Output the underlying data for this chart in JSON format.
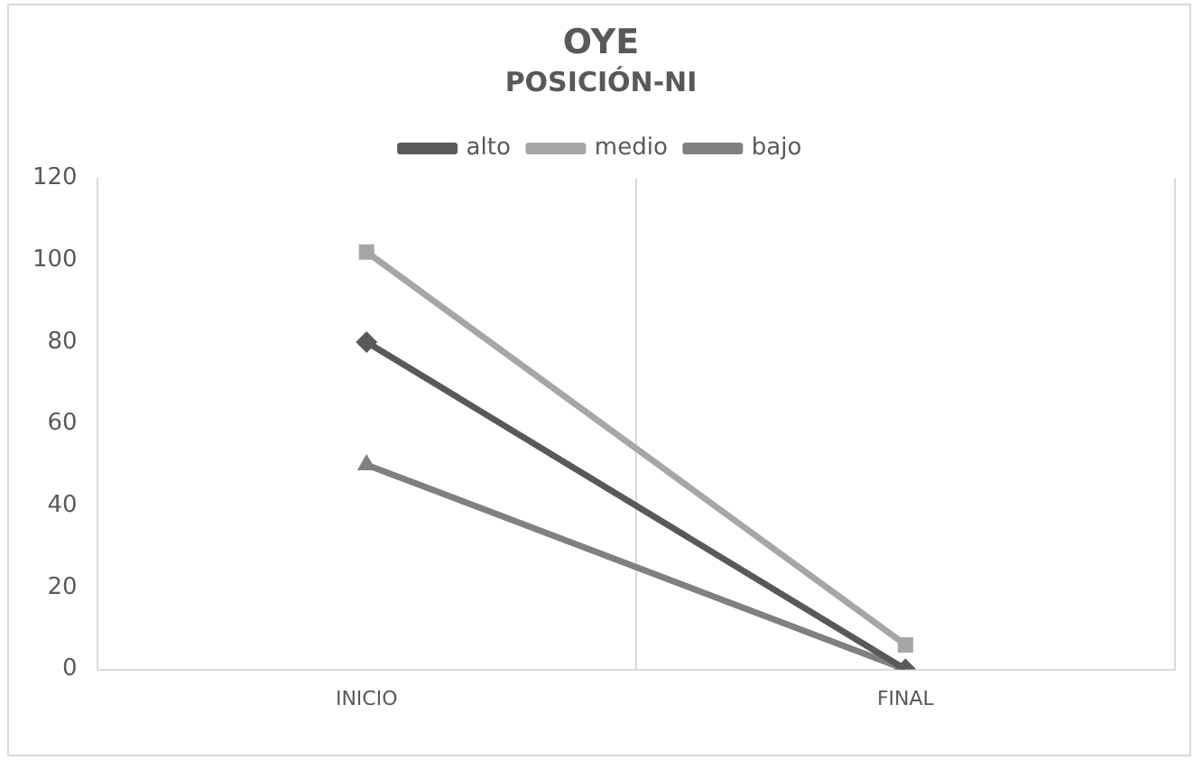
{
  "chart_data": {
    "type": "line",
    "title": "OYE",
    "subtitle": "POSICIÓN-NI",
    "categories": [
      "INICIO",
      "FINAL"
    ],
    "series": [
      {
        "name": "alto",
        "color": "#595959",
        "values": [
          80,
          0
        ],
        "marker": "diamond"
      },
      {
        "name": "medio",
        "color": "#a6a6a6",
        "values": [
          102,
          6
        ],
        "marker": "square"
      },
      {
        "name": "bajo",
        "color": "#808080",
        "values": [
          50,
          0
        ],
        "marker": "triangle"
      }
    ],
    "ylim": [
      0,
      120
    ],
    "yticks": [
      0,
      20,
      40,
      60,
      80,
      100,
      120
    ],
    "grid": "x",
    "legend": "top",
    "line_style": "solid"
  }
}
